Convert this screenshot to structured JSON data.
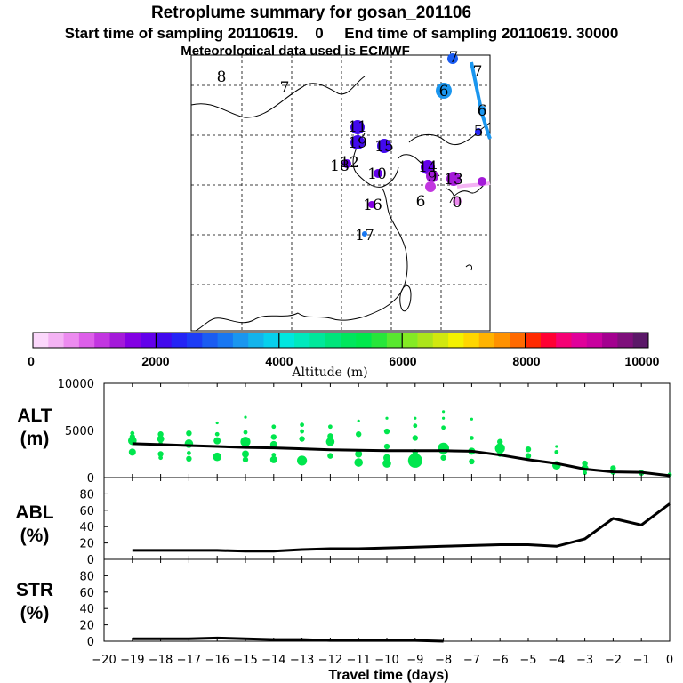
{
  "header": {
    "title": "Retroplume summary for gosan_201106",
    "sampling": "Start time of sampling 20110619.    0     End time of sampling 20110619. 30000",
    "met": "Meteorological data used is ECMWF"
  },
  "colors": {
    "scatter": "#00e64d",
    "line": "#000000",
    "colorbar": [
      "#fbd7fb",
      "#f4b3f4",
      "#ec8bef",
      "#dd5fe9",
      "#c236e0",
      "#a41ad9",
      "#8300e3",
      "#6300ea",
      "#4209ed",
      "#2424f5",
      "#1c3cf5",
      "#1a5cf2",
      "#1877f2",
      "#1a96ef",
      "#13b4eb",
      "#07d0ec",
      "#00e6df",
      "#00e9bd",
      "#00e89b",
      "#00e57b",
      "#00e65d",
      "#00e84c",
      "#27e63a",
      "#58e82f",
      "#84ea24",
      "#ace51b",
      "#d1e80f",
      "#f4f100",
      "#ffd600",
      "#ffb300",
      "#ff9100",
      "#ff6a00",
      "#ff2a00",
      "#ff0033",
      "#f50074",
      "#e0009a",
      "#c8009e",
      "#a3008f",
      "#7e0f7b",
      "#5b1868"
    ]
  },
  "chart_data": [
    {
      "type": "map",
      "title": "Retroplume summary for gosan_201106",
      "subtitle": "Start time of sampling 20110619.    0     End time of sampling 20110619. 30000",
      "note": "Meteorological data used is ECMWF",
      "plume_labels": [
        {
          "text": "8",
          "color": "#d8e000"
        },
        {
          "text": "7",
          "color": "#c8d800"
        },
        {
          "text": "7",
          "color": "#1a5cf2"
        },
        {
          "text": "7",
          "color": "#1a96ef"
        },
        {
          "text": "6",
          "color": "#1a96ef"
        },
        {
          "text": "6",
          "color": "#1a96ef"
        },
        {
          "text": "5",
          "color": "#2424f5"
        },
        {
          "text": "11",
          "color": "#4209ed"
        },
        {
          "text": "19",
          "color": "#4209ed"
        },
        {
          "text": "15",
          "color": "#4209ed"
        },
        {
          "text": "18",
          "color": "#6300ea"
        },
        {
          "text": "12",
          "color": "#6300ea"
        },
        {
          "text": "10",
          "color": "#6300ea"
        },
        {
          "text": "14",
          "color": "#6300ea"
        },
        {
          "text": "9",
          "color": "#a41ad9"
        },
        {
          "text": "13",
          "color": "#a41ad9"
        },
        {
          "text": "16",
          "color": "#8300e3"
        },
        {
          "text": "6",
          "color": "#1a96ef"
        },
        {
          "text": "0",
          "color": "#c236e0"
        },
        {
          "text": "17",
          "color": "#1877f2"
        }
      ]
    },
    {
      "type": "colorbar",
      "xlabel": "Altitude (m)",
      "range": [
        0,
        10000
      ],
      "ticks": [
        "0",
        "2000",
        "4000",
        "6000",
        "8000",
        "10000"
      ]
    },
    {
      "type": "scatter+line",
      "ylabel": "ALT",
      "yunit": "(m)",
      "xlim": [
        -20,
        0
      ],
      "ylim": [
        0,
        10000
      ],
      "yticks": [
        "10000",
        "5000",
        "0"
      ],
      "median": {
        "x": [
          -19,
          -18,
          -17,
          -16,
          -15,
          -14,
          -13,
          -12,
          -11,
          -10,
          -9,
          -8,
          -7,
          -6,
          -5,
          -4,
          -3,
          -2,
          -1,
          0
        ],
        "y": [
          3600,
          3500,
          3400,
          3300,
          3200,
          3150,
          3050,
          2950,
          2900,
          2850,
          2850,
          2850,
          2800,
          2400,
          1900,
          1500,
          900,
          600,
          550,
          200
        ]
      },
      "points": [
        {
          "x": -19,
          "y": 4700,
          "s": 3
        },
        {
          "x": -19,
          "y": 4300,
          "s": 4
        },
        {
          "x": -19,
          "y": 3900,
          "s": 6
        },
        {
          "x": -19,
          "y": 2700,
          "s": 5
        },
        {
          "x": -18,
          "y": 4600,
          "s": 4
        },
        {
          "x": -18,
          "y": 4100,
          "s": 5
        },
        {
          "x": -18,
          "y": 3600,
          "s": 3
        },
        {
          "x": -18,
          "y": 2500,
          "s": 4
        },
        {
          "x": -18,
          "y": 2100,
          "s": 3
        },
        {
          "x": -17,
          "y": 4700,
          "s": 4
        },
        {
          "x": -17,
          "y": 3600,
          "s": 6
        },
        {
          "x": -17,
          "y": 2600,
          "s": 3
        },
        {
          "x": -17,
          "y": 2000,
          "s": 4
        },
        {
          "x": -16,
          "y": 5800,
          "s": 2
        },
        {
          "x": -16,
          "y": 4600,
          "s": 3
        },
        {
          "x": -16,
          "y": 3900,
          "s": 5
        },
        {
          "x": -16,
          "y": 2200,
          "s": 6
        },
        {
          "x": -15,
          "y": 6400,
          "s": 2
        },
        {
          "x": -15,
          "y": 4800,
          "s": 3
        },
        {
          "x": -15,
          "y": 3800,
          "s": 7
        },
        {
          "x": -15,
          "y": 2500,
          "s": 5
        },
        {
          "x": -15,
          "y": 1900,
          "s": 4
        },
        {
          "x": -14,
          "y": 5400,
          "s": 3
        },
        {
          "x": -14,
          "y": 4300,
          "s": 4
        },
        {
          "x": -14,
          "y": 3500,
          "s": 5
        },
        {
          "x": -14,
          "y": 2400,
          "s": 3
        },
        {
          "x": -14,
          "y": 1900,
          "s": 5
        },
        {
          "x": -13,
          "y": 5600,
          "s": 3
        },
        {
          "x": -13,
          "y": 4900,
          "s": 3
        },
        {
          "x": -13,
          "y": 4100,
          "s": 4
        },
        {
          "x": -13,
          "y": 1800,
          "s": 7
        },
        {
          "x": -12,
          "y": 5400,
          "s": 3
        },
        {
          "x": -12,
          "y": 4400,
          "s": 4
        },
        {
          "x": -12,
          "y": 3800,
          "s": 6
        },
        {
          "x": -12,
          "y": 2300,
          "s": 4
        },
        {
          "x": -11,
          "y": 6000,
          "s": 2
        },
        {
          "x": -11,
          "y": 4600,
          "s": 4
        },
        {
          "x": -11,
          "y": 2500,
          "s": 5
        },
        {
          "x": -11,
          "y": 1600,
          "s": 6
        },
        {
          "x": -10,
          "y": 6300,
          "s": 2
        },
        {
          "x": -10,
          "y": 4900,
          "s": 4
        },
        {
          "x": -10,
          "y": 3300,
          "s": 4
        },
        {
          "x": -10,
          "y": 2100,
          "s": 5
        },
        {
          "x": -10,
          "y": 1500,
          "s": 6
        },
        {
          "x": -9,
          "y": 6300,
          "s": 2
        },
        {
          "x": -9,
          "y": 5500,
          "s": 3
        },
        {
          "x": -9,
          "y": 4200,
          "s": 4
        },
        {
          "x": -9,
          "y": 2700,
          "s": 4
        },
        {
          "x": -9,
          "y": 1800,
          "s": 10
        },
        {
          "x": -8,
          "y": 7000,
          "s": 2
        },
        {
          "x": -8,
          "y": 6300,
          "s": 2
        },
        {
          "x": -8,
          "y": 5300,
          "s": 3
        },
        {
          "x": -8,
          "y": 3100,
          "s": 8
        },
        {
          "x": -8,
          "y": 2100,
          "s": 4
        },
        {
          "x": -7,
          "y": 6200,
          "s": 2
        },
        {
          "x": -7,
          "y": 4200,
          "s": 3
        },
        {
          "x": -7,
          "y": 2800,
          "s": 5
        },
        {
          "x": -7,
          "y": 1700,
          "s": 4
        },
        {
          "x": -6,
          "y": 3800,
          "s": 4
        },
        {
          "x": -6,
          "y": 3100,
          "s": 7
        },
        {
          "x": -6,
          "y": 2500,
          "s": 4
        },
        {
          "x": -5,
          "y": 3000,
          "s": 4
        },
        {
          "x": -5,
          "y": 2300,
          "s": 4
        },
        {
          "x": -4,
          "y": 3300,
          "s": 2
        },
        {
          "x": -4,
          "y": 2700,
          "s": 3
        },
        {
          "x": -4,
          "y": 1300,
          "s": 6
        },
        {
          "x": -3,
          "y": 1500,
          "s": 4
        },
        {
          "x": -3,
          "y": 1000,
          "s": 5
        },
        {
          "x": -3,
          "y": 500,
          "s": 3
        },
        {
          "x": -2,
          "y": 1000,
          "s": 4
        },
        {
          "x": -2,
          "y": 600,
          "s": 4
        },
        {
          "x": -1,
          "y": 500,
          "s": 4
        },
        {
          "x": 0,
          "y": 300,
          "s": 3
        }
      ]
    },
    {
      "type": "line",
      "ylabel": "ABL",
      "yunit": "(%)",
      "xlim": [
        -20,
        0
      ],
      "ylim": [
        0,
        100
      ],
      "yticks": [
        "80",
        "60",
        "40",
        "20",
        "0"
      ],
      "x": [
        -19,
        -18,
        -17,
        -16,
        -15,
        -14,
        -13,
        -12,
        -11,
        -10,
        -9,
        -8,
        -7,
        -6,
        -5,
        -4,
        -3,
        -2,
        -1,
        0
      ],
      "y": [
        11,
        11,
        11,
        11,
        10,
        10,
        12,
        13,
        13,
        14,
        15,
        16,
        17,
        18,
        18,
        16,
        25,
        50,
        42,
        68
      ]
    },
    {
      "type": "line",
      "ylabel": "STR",
      "yunit": "(%)",
      "xlim": [
        -20,
        0
      ],
      "ylim": [
        0,
        100
      ],
      "yticks": [
        "80",
        "60",
        "40",
        "20",
        "0"
      ],
      "xlabel": "Travel time (days)",
      "xticks": [
        "−20",
        "−19",
        "−18",
        "−17",
        "−16",
        "−15",
        "−14",
        "−13",
        "−12",
        "−11",
        "−10",
        "−9",
        "−8",
        "−7",
        "−6",
        "−5",
        "−4",
        "−3",
        "−2",
        "−1",
        "0"
      ],
      "x": [
        -19,
        -18,
        -17,
        -16,
        -15,
        -14,
        -13,
        -12,
        -11,
        -10,
        -9,
        -8
      ],
      "y": [
        3,
        3,
        3,
        4,
        3,
        2,
        2,
        1,
        1,
        1,
        1,
        0
      ]
    }
  ]
}
